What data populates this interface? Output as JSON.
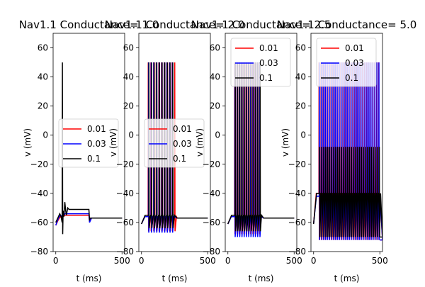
{
  "colors": {
    "0.01": "#ff0000",
    "0.03": "#0000ff",
    "0.1": "#000000"
  },
  "chart_data": [
    {
      "type": "line",
      "title": "Nav1.1 Conductance= 1.0",
      "xlabel": "t (ms)",
      "ylabel": "v (mV)",
      "xlim": [
        -20,
        520
      ],
      "ylim": [
        -80,
        70
      ],
      "xticks": [
        "0",
        "500"
      ],
      "yticks": [
        "−80",
        "−60",
        "−40",
        "−20",
        "0",
        "20",
        "40",
        "60"
      ],
      "legend_position": "center-right",
      "series": [
        {
          "name": "0.01",
          "color": "#ff0000",
          "x": [
            0,
            20,
            35,
            45,
            50,
            55,
            70,
            100,
            200,
            250,
            255,
            270,
            300,
            400,
            500
          ],
          "y": [
            -62,
            -58,
            -56,
            -57,
            -55,
            -56,
            -55,
            -55,
            -55,
            -55,
            -59,
            -57,
            -57,
            -57,
            -57
          ]
        },
        {
          "name": "0.03",
          "color": "#0000ff",
          "x": [
            0,
            20,
            35,
            45,
            50,
            55,
            70,
            100,
            200,
            250,
            255,
            270,
            300,
            400,
            500
          ],
          "y": [
            -62,
            -57,
            -55,
            -56,
            -54,
            -56,
            -54,
            -54,
            -54,
            -54,
            -60,
            -57,
            -57,
            -57,
            -57
          ]
        },
        {
          "name": "0.1",
          "color": "#000000",
          "x": [
            0,
            20,
            30,
            40,
            48,
            50,
            52,
            55,
            58,
            62,
            68,
            75,
            80,
            90,
            100,
            150,
            200,
            250,
            255,
            260,
            270,
            300,
            400,
            500
          ],
          "y": [
            -60,
            -56,
            -54,
            -56,
            -60,
            50,
            -68,
            -55,
            -52,
            -56,
            -46,
            -52,
            -55,
            -50,
            -51,
            -51,
            -51,
            -51,
            -58,
            -57,
            -57,
            -57,
            -57,
            -57
          ]
        }
      ]
    },
    {
      "type": "line",
      "title": "Nav1.1 Conductance= 2.0",
      "xlabel": "t (ms)",
      "ylabel": "v (mV)",
      "xlim": [
        -20,
        520
      ],
      "ylim": [
        -80,
        70
      ],
      "xticks": [
        "0",
        "500"
      ],
      "yticks": [
        "−80",
        "−60",
        "−40",
        "−20",
        "0",
        "20",
        "40",
        "60"
      ],
      "legend_position": "center-right",
      "spike_trains": [
        {
          "name": "0.01",
          "color": "#ff0000",
          "start": 50,
          "end": 250,
          "period": 20,
          "peak": 50,
          "trough": -66,
          "baseline": -56,
          "tail": -57
        },
        {
          "name": "0.03",
          "color": "#0000ff",
          "start": 52,
          "end": 250,
          "period": 20,
          "peak": 50,
          "trough": -67,
          "baseline": -56,
          "tail": -57
        },
        {
          "name": "0.1",
          "color": "#000000",
          "start": 55,
          "end": 250,
          "period": 20,
          "peak": 50,
          "trough": -64,
          "baseline": -55,
          "tail": -57
        }
      ]
    },
    {
      "type": "line",
      "title": "Nav1.1 Conductance= 2.5",
      "xlabel": "t (ms)",
      "ylabel": "v (mV)",
      "xlim": [
        -20,
        520
      ],
      "ylim": [
        -80,
        70
      ],
      "xticks": [
        "0",
        "500"
      ],
      "yticks": [
        "−80",
        "−60",
        "−40",
        "−20",
        "0",
        "20",
        "40",
        "60"
      ],
      "legend_position": "top-right",
      "spike_trains": [
        {
          "name": "0.01",
          "color": "#ff0000",
          "start": 50,
          "end": 250,
          "period": 17,
          "peak": 50,
          "trough": -68,
          "baseline": -56,
          "tail": -57
        },
        {
          "name": "0.03",
          "color": "#0000ff",
          "start": 52,
          "end": 250,
          "period": 17,
          "peak": 50,
          "trough": -70,
          "baseline": -56,
          "tail": -57
        },
        {
          "name": "0.1",
          "color": "#000000",
          "start": 55,
          "end": 250,
          "period": 17,
          "peak": 50,
          "trough": -66,
          "baseline": -55,
          "tail": -57
        }
      ]
    },
    {
      "type": "line",
      "title": "Nav1.1 Conductance= 5.0",
      "xlabel": "t (ms)",
      "ylabel": "v (mV)",
      "xlim": [
        -20,
        520
      ],
      "ylim": [
        -80,
        70
      ],
      "xticks": [
        "0",
        "500"
      ],
      "yticks": [
        "−80",
        "−60",
        "−40",
        "−20",
        "0",
        "20",
        "40",
        "60"
      ],
      "legend_position": "top-right",
      "spike_trains": [
        {
          "name": "0.01",
          "color": "#ff0000",
          "start": 40,
          "end": 500,
          "period": 15,
          "peak": 50,
          "trough": -72,
          "baseline": -40,
          "tail": -72
        },
        {
          "name": "0.03",
          "color": "#0000ff",
          "start": 42,
          "end": 500,
          "period": 15,
          "peak": 50,
          "trough": -72,
          "baseline": -42,
          "tail": -72
        },
        {
          "name": "0.1",
          "color": "#000000",
          "start": 45,
          "end": 500,
          "period": 15,
          "peak": -8,
          "trough": -70,
          "baseline": -40,
          "tail": -70
        }
      ]
    }
  ]
}
